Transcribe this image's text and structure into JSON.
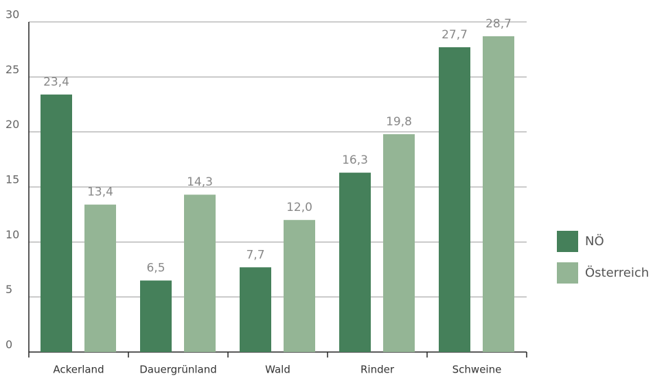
{
  "chart_data": {
    "type": "bar",
    "categories": [
      "Ackerland",
      "Dauergrünland",
      "Wald",
      "Rinder",
      "Schweine"
    ],
    "series": [
      {
        "name": "NÖ",
        "color": "#45805a",
        "values": [
          23.4,
          6.5,
          7.7,
          16.3,
          27.7
        ],
        "value_labels": [
          "23,4",
          "6,5",
          "7,7",
          "16,3",
          "27,7"
        ]
      },
      {
        "name": "Österreich",
        "color": "#94b595",
        "values": [
          13.4,
          14.3,
          12.0,
          19.8,
          28.7
        ],
        "value_labels": [
          "13,4",
          "14,3",
          "12,0",
          "19,8",
          "28,7"
        ]
      }
    ],
    "ylim": [
      0,
      30
    ],
    "yticks": [
      0,
      5,
      10,
      15,
      20,
      25,
      30
    ],
    "grid": true,
    "legend": "right"
  }
}
